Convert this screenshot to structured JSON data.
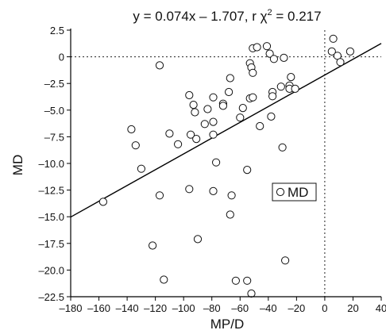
{
  "chart_data": {
    "type": "scatter",
    "title_prefix": "y = 0.074x – 1.707, r χ",
    "title_superscript": "2",
    "title_suffix": " = 0.217",
    "xlabel": "MP/D",
    "ylabel": "MD",
    "xlim": [
      -180,
      40
    ],
    "ylim": [
      -22.5,
      2.5
    ],
    "xticks": [
      -180,
      -160,
      -140,
      -120,
      -100,
      -80,
      -60,
      -40,
      -20,
      0,
      20,
      40
    ],
    "xtick_labels": [
      "–180",
      "–160",
      "–140",
      "–120",
      "–100",
      "–80",
      "–60",
      "–40",
      "–20",
      "0",
      "20",
      "40"
    ],
    "yticks": [
      2.5,
      0,
      -2.5,
      -5,
      -7.5,
      -10,
      -12.5,
      -15,
      -17.5,
      -20,
      -22.5
    ],
    "ytick_labels": [
      "2.5",
      "0",
      "–2.5",
      "–5.0",
      "–7.5",
      "–10.0",
      "–12.5",
      "–15.0",
      "–17.5",
      "–20.0",
      "–22.5"
    ],
    "reference_lines": {
      "y": 0,
      "x": 0,
      "style": "dotted"
    },
    "regression": {
      "slope": 0.074,
      "intercept": -1.707
    },
    "legend": {
      "label": "MD",
      "position": "center-right"
    },
    "series": [
      {
        "name": "MD",
        "marker": "open-circle",
        "points": [
          [
            -157,
            -13.6
          ],
          [
            -137,
            -6.8
          ],
          [
            -134,
            -8.3
          ],
          [
            -130,
            -10.5
          ],
          [
            -122,
            -17.7
          ],
          [
            -117,
            -0.8
          ],
          [
            -117,
            -13.0
          ],
          [
            -114,
            -20.9
          ],
          [
            -110,
            -7.2
          ],
          [
            -104,
            -8.2
          ],
          [
            -96,
            -3.6
          ],
          [
            -96,
            -12.4
          ],
          [
            -95,
            -7.3
          ],
          [
            -93,
            -4.5
          ],
          [
            -92,
            -5.2
          ],
          [
            -91,
            -7.7
          ],
          [
            -90,
            -17.1
          ],
          [
            -85,
            -6.3
          ],
          [
            -83,
            -4.9
          ],
          [
            -79,
            -3.8
          ],
          [
            -79,
            -6.1
          ],
          [
            -79,
            -7.3
          ],
          [
            -79,
            -12.6
          ],
          [
            -77,
            -9.9
          ],
          [
            -72,
            -4.4
          ],
          [
            -72,
            -4.6
          ],
          [
            -68,
            -3.3
          ],
          [
            -67,
            -2.0
          ],
          [
            -67,
            -14.8
          ],
          [
            -66,
            -13.0
          ],
          [
            -63,
            -21.0
          ],
          [
            -60,
            -5.7
          ],
          [
            -58,
            -4.8
          ],
          [
            -55,
            -10.6
          ],
          [
            -55,
            -21.0
          ],
          [
            -53,
            -0.6
          ],
          [
            -53,
            -3.9
          ],
          [
            -52,
            -1.0
          ],
          [
            -52,
            -22.2
          ],
          [
            -51,
            0.8
          ],
          [
            -51,
            -1.5
          ],
          [
            -51,
            -3.8
          ],
          [
            -48,
            0.9
          ],
          [
            -46,
            -6.5
          ],
          [
            -41,
            1.0
          ],
          [
            -39,
            0.3
          ],
          [
            -38,
            -5.6
          ],
          [
            -37,
            -3.3
          ],
          [
            -37,
            -3.7
          ],
          [
            -36,
            -0.2
          ],
          [
            -31,
            -2.8
          ],
          [
            -30,
            -8.5
          ],
          [
            -29,
            -0.1
          ],
          [
            -28,
            -19.1
          ],
          [
            -25,
            -2.7
          ],
          [
            -25,
            -3.0
          ],
          [
            -24,
            -1.9
          ],
          [
            -21,
            -3.0
          ],
          [
            5,
            0.5
          ],
          [
            6,
            1.7
          ],
          [
            9,
            0.1
          ],
          [
            11,
            -0.5
          ],
          [
            18,
            0.5
          ]
        ]
      }
    ]
  }
}
